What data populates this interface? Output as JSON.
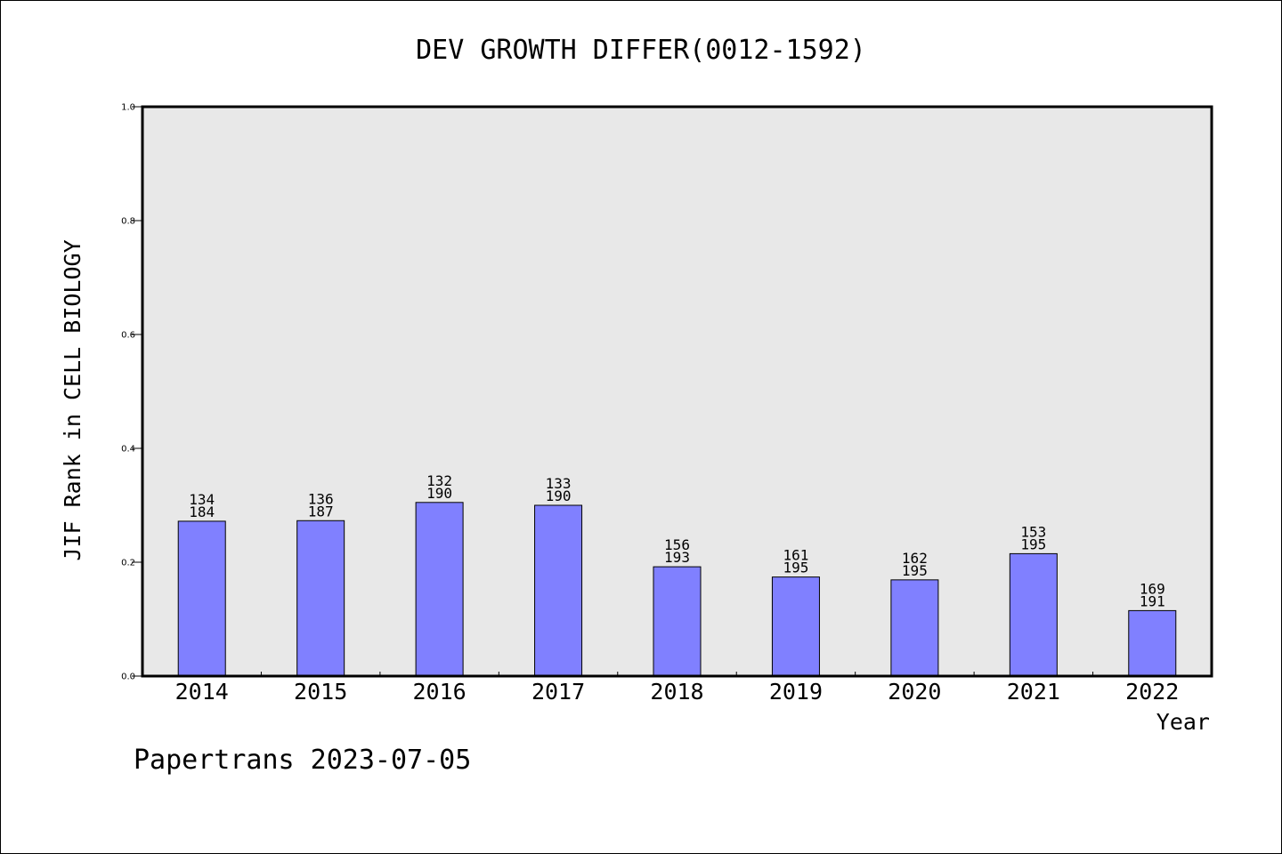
{
  "chart_data": {
    "type": "bar",
    "title": "DEV GROWTH DIFFER(0012-1592)",
    "xlabel": "Year",
    "ylabel": "JIF Rank in CELL BIOLOGY",
    "ylim": [
      0,
      1.0
    ],
    "yticks": [
      "0.0",
      "0.2",
      "0.4",
      "0.6",
      "0.8",
      "1.0"
    ],
    "categories": [
      "2014",
      "2015",
      "2016",
      "2017",
      "2018",
      "2019",
      "2020",
      "2021",
      "2022"
    ],
    "values": [
      0.272,
      0.273,
      0.305,
      0.3,
      0.192,
      0.174,
      0.169,
      0.215,
      0.115
    ],
    "rank": [
      "134",
      "136",
      "132",
      "133",
      "156",
      "161",
      "162",
      "153",
      "169"
    ],
    "total": [
      "184",
      "187",
      "190",
      "190",
      "193",
      "195",
      "195",
      "195",
      "191"
    ],
    "bar_color": "#8080ff",
    "plot_background": "#e8e8e8",
    "grid": false,
    "legend": "none"
  },
  "footer": "Papertrans 2023-07-05"
}
